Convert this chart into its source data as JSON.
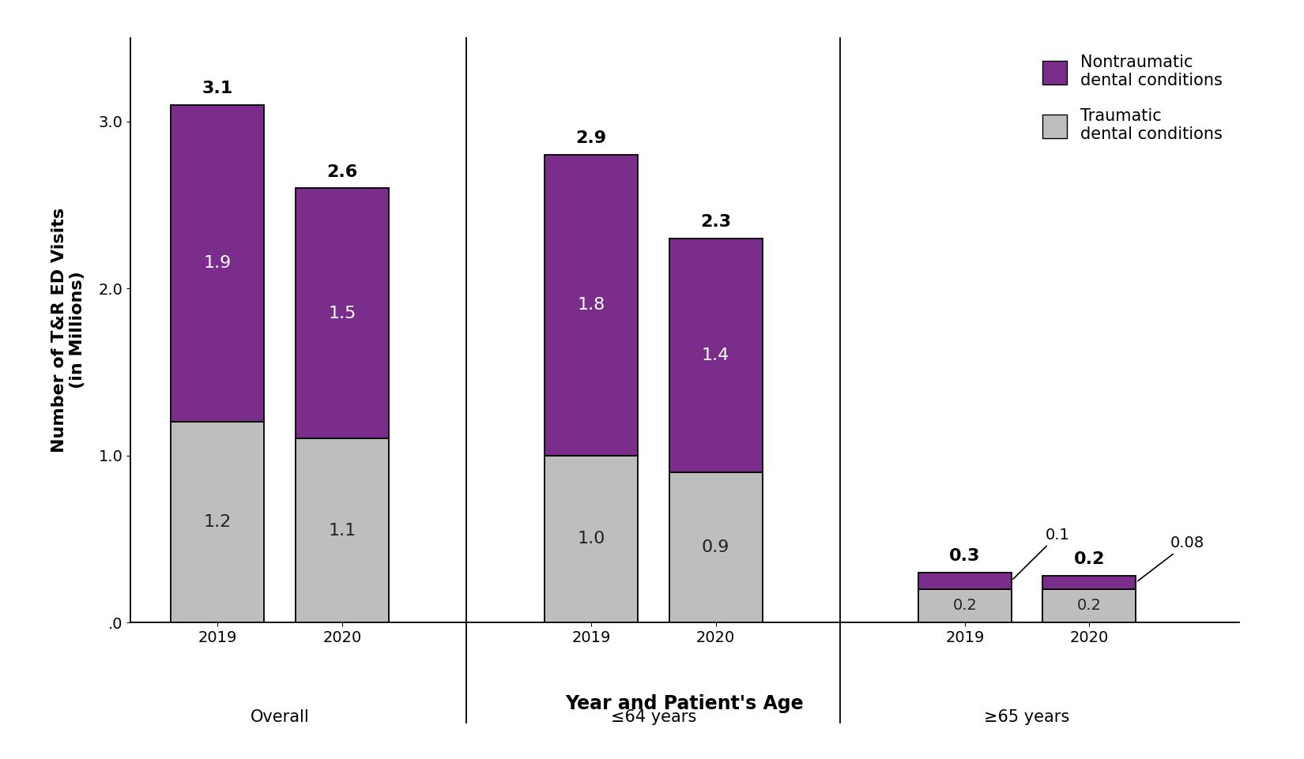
{
  "groups": [
    "Overall",
    "≤64 years",
    "≥65 years"
  ],
  "years": [
    "2019",
    "2020"
  ],
  "traumatic": [
    1.2,
    1.1,
    1.0,
    0.9,
    0.2,
    0.2
  ],
  "nontraumatic": [
    1.9,
    1.5,
    1.8,
    1.4,
    0.1,
    0.08
  ],
  "totals": [
    "3.1",
    "2.6",
    "2.9",
    "2.3",
    "0.3",
    "0.2"
  ],
  "bar_positions": [
    1.0,
    2.0,
    4.0,
    5.0,
    7.0,
    8.0
  ],
  "group_centers": [
    1.5,
    4.5,
    7.5
  ],
  "group_labels": [
    "Overall",
    "≤64 years",
    "≥65 years"
  ],
  "color_nontraumatic": "#7B2D8B",
  "color_traumatic": "#BEBEBE",
  "bar_width": 0.75,
  "ylabel": "Number of T&R ED Visits\n(in Millions)",
  "xlabel": "Year and Patient's Age",
  "ylim": [
    0,
    3.5
  ],
  "yticks": [
    0.0,
    1.0,
    2.0,
    3.0
  ],
  "ytick_labels": [
    ".0",
    "1.0",
    "2.0",
    "3.0"
  ],
  "legend_nontraumatic": "Nontraumatic\ndental conditions",
  "legend_traumatic": "Traumatic\ndental conditions",
  "background_color": "#FFFFFF",
  "vline_x": [
    3.0,
    6.0
  ],
  "xlim": [
    0.3,
    9.2
  ],
  "label_fontsize": 15,
  "tick_fontsize": 14,
  "inner_label_fontsize": 16,
  "total_label_fontsize": 16,
  "group_label_fontsize": 15,
  "annotation_fontsize": 14
}
